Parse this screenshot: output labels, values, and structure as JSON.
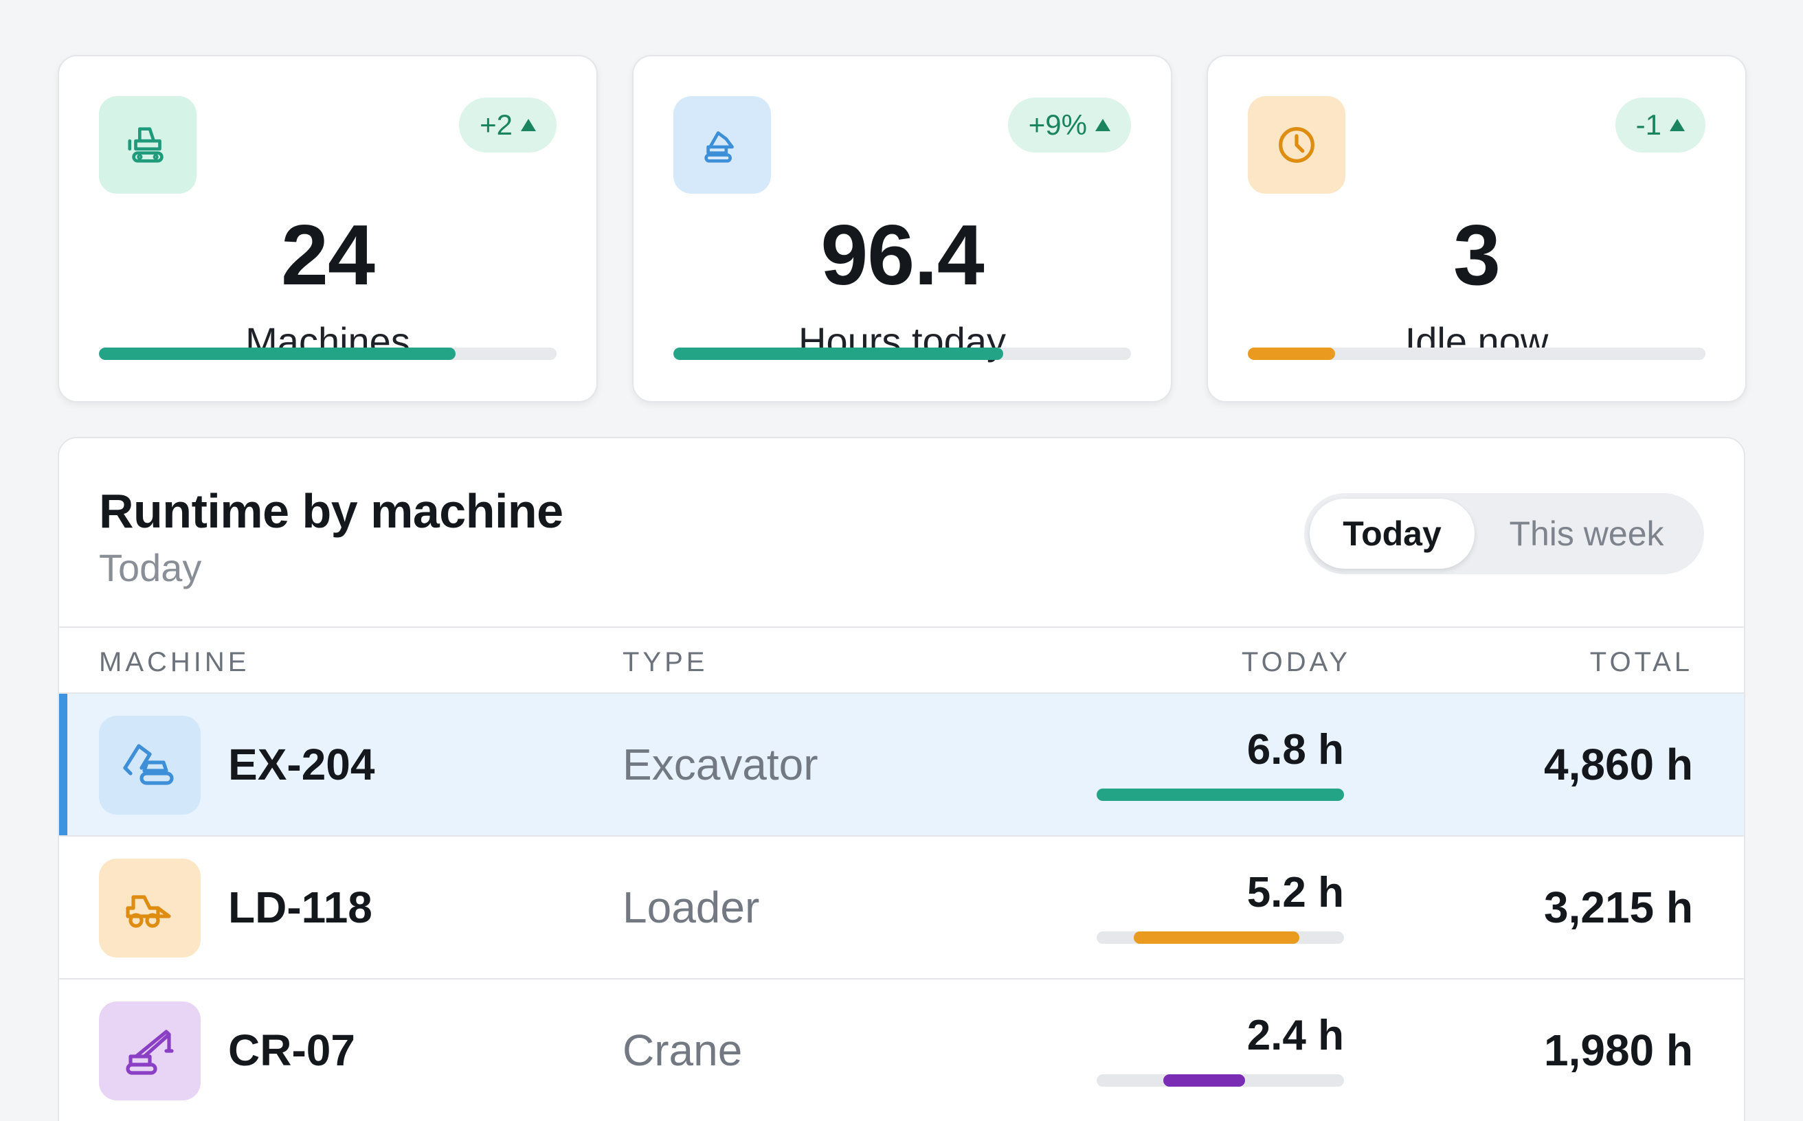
{
  "kpis": [
    {
      "icon": "dozer-icon",
      "delta": "+2",
      "value": "24",
      "label": "Machines",
      "progress": 0.78,
      "fill_color": "#23a487",
      "icon_bg": "#d5f3e7",
      "icon_color": "#1f9a7b"
    },
    {
      "icon": "excavator-icon",
      "delta": "+9%",
      "value": "96.4",
      "label": "Hours today",
      "progress": 0.72,
      "fill_color": "#23a487",
      "icon_bg": "#d6e9fb",
      "icon_color": "#3d8fd8"
    },
    {
      "icon": "clock-icon",
      "delta": "-1",
      "value": "3",
      "label": "Idle now",
      "progress": 0.19,
      "fill_color": "#e99a1f",
      "icon_bg": "#fde6c6",
      "icon_color": "#df8d10"
    }
  ],
  "runtime": {
    "title": "Runtime by machine",
    "subtitle": "Today",
    "toggle": {
      "options": [
        "Today",
        "This week"
      ],
      "selected": "Today"
    },
    "columns": {
      "machine": "MACHINE",
      "type": "TYPE",
      "today": "TODAY",
      "total": "TOTAL"
    },
    "rows": [
      {
        "id": "EX-204",
        "type": "Excavator",
        "today": "6.8 h",
        "total": "4,860 h",
        "icon": "excavator-icon",
        "icon_bg": "#d3e7fb",
        "icon_color": "#3d8fd8",
        "fill_color": "#23a487",
        "bar_start": 0.0,
        "bar_end": 1.0,
        "selected": true
      },
      {
        "id": "LD-118",
        "type": "Loader",
        "today": "5.2 h",
        "total": "3,215 h",
        "icon": "loader-icon",
        "icon_bg": "#fde6c6",
        "icon_color": "#df8d10",
        "fill_color": "#e99a1f",
        "bar_start": 0.15,
        "bar_end": 0.82,
        "selected": false
      },
      {
        "id": "CR-07",
        "type": "Crane",
        "today": "2.4 h",
        "total": "1,980 h",
        "icon": "crane-icon",
        "icon_bg": "#e8d5f6",
        "icon_color": "#8a3fc4",
        "fill_color": "#7a2db4",
        "bar_start": 0.27,
        "bar_end": 0.6,
        "selected": false
      }
    ]
  }
}
